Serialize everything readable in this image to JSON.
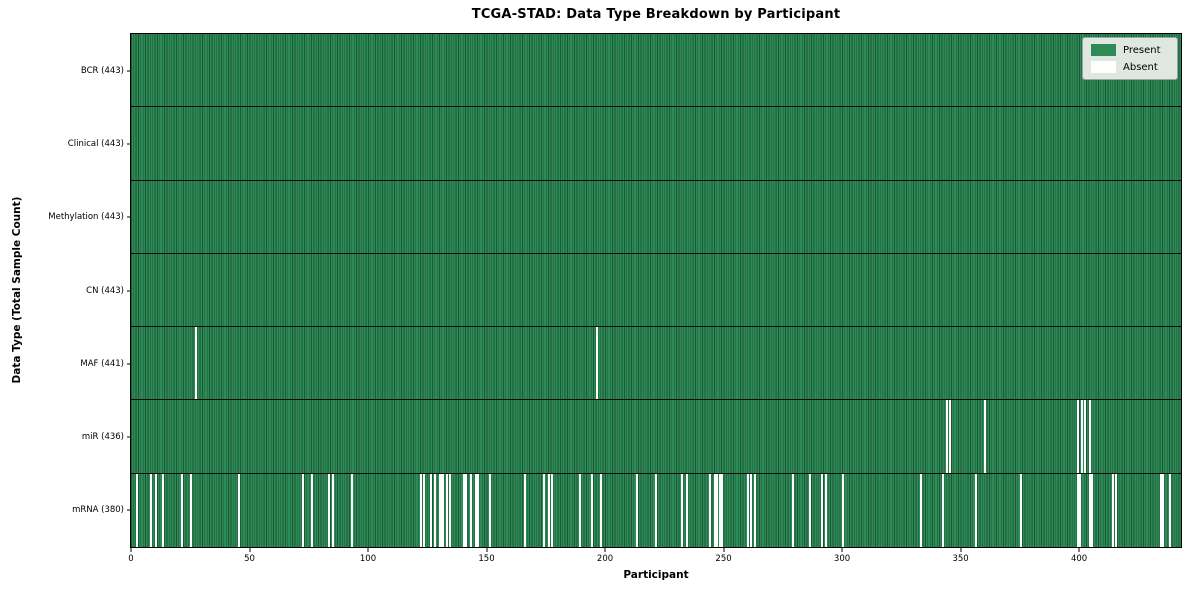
{
  "chart_data": {
    "type": "heatmap",
    "title": "TCGA-STAD: Data Type Breakdown by Participant",
    "xlabel": "Participant",
    "ylabel": "Data Type (Total Sample Count)",
    "x_axis": {
      "min": 0,
      "max": 443,
      "ticks": [
        0,
        50,
        100,
        150,
        200,
        250,
        300,
        350,
        400
      ]
    },
    "n_participants": 443,
    "grid": "cell-edges-only",
    "colors": {
      "present": "#2e8b57",
      "absent": "#ffffff",
      "cell_edge": "rgba(0,25,12,0.45)",
      "row_divider": "#0a0a0a",
      "plot_border": "#000000",
      "legend_bg": "#dee7e0"
    },
    "legend": {
      "position": "upper right",
      "entries": [
        {
          "label": "Present",
          "color": "#2e8b57"
        },
        {
          "label": "Absent",
          "color": "#ffffff"
        }
      ]
    },
    "rows": [
      {
        "name": "BCR",
        "label": "BCR (443)",
        "total": 443,
        "absent": []
      },
      {
        "name": "Clinical",
        "label": "Clinical (443)",
        "total": 443,
        "absent": []
      },
      {
        "name": "Methylation",
        "label": "Methylation (443)",
        "total": 443,
        "absent": []
      },
      {
        "name": "CN",
        "label": "CN (443)",
        "total": 443,
        "absent": []
      },
      {
        "name": "MAF",
        "label": "MAF (441)",
        "total": 441,
        "absent": [
          27,
          196
        ]
      },
      {
        "name": "miR",
        "label": "miR (436)",
        "total": 436,
        "absent": [
          344,
          345,
          360,
          399,
          401,
          402,
          404
        ]
      },
      {
        "name": "mRNA",
        "label": "mRNA (380)",
        "total": 380,
        "absent": [
          2,
          8,
          10,
          13,
          21,
          25,
          45,
          72,
          76,
          83,
          85,
          93,
          122,
          123,
          126,
          128,
          130,
          131,
          133,
          134,
          140,
          141,
          143,
          145,
          146,
          151,
          166,
          174,
          176,
          177,
          189,
          194,
          198,
          213,
          221,
          232,
          234,
          244,
          246,
          247,
          248,
          249,
          260,
          261,
          263,
          279,
          286,
          291,
          293,
          300,
          333,
          342,
          356,
          375,
          399,
          400,
          404,
          405,
          414,
          415,
          434,
          435,
          438
        ]
      }
    ]
  }
}
